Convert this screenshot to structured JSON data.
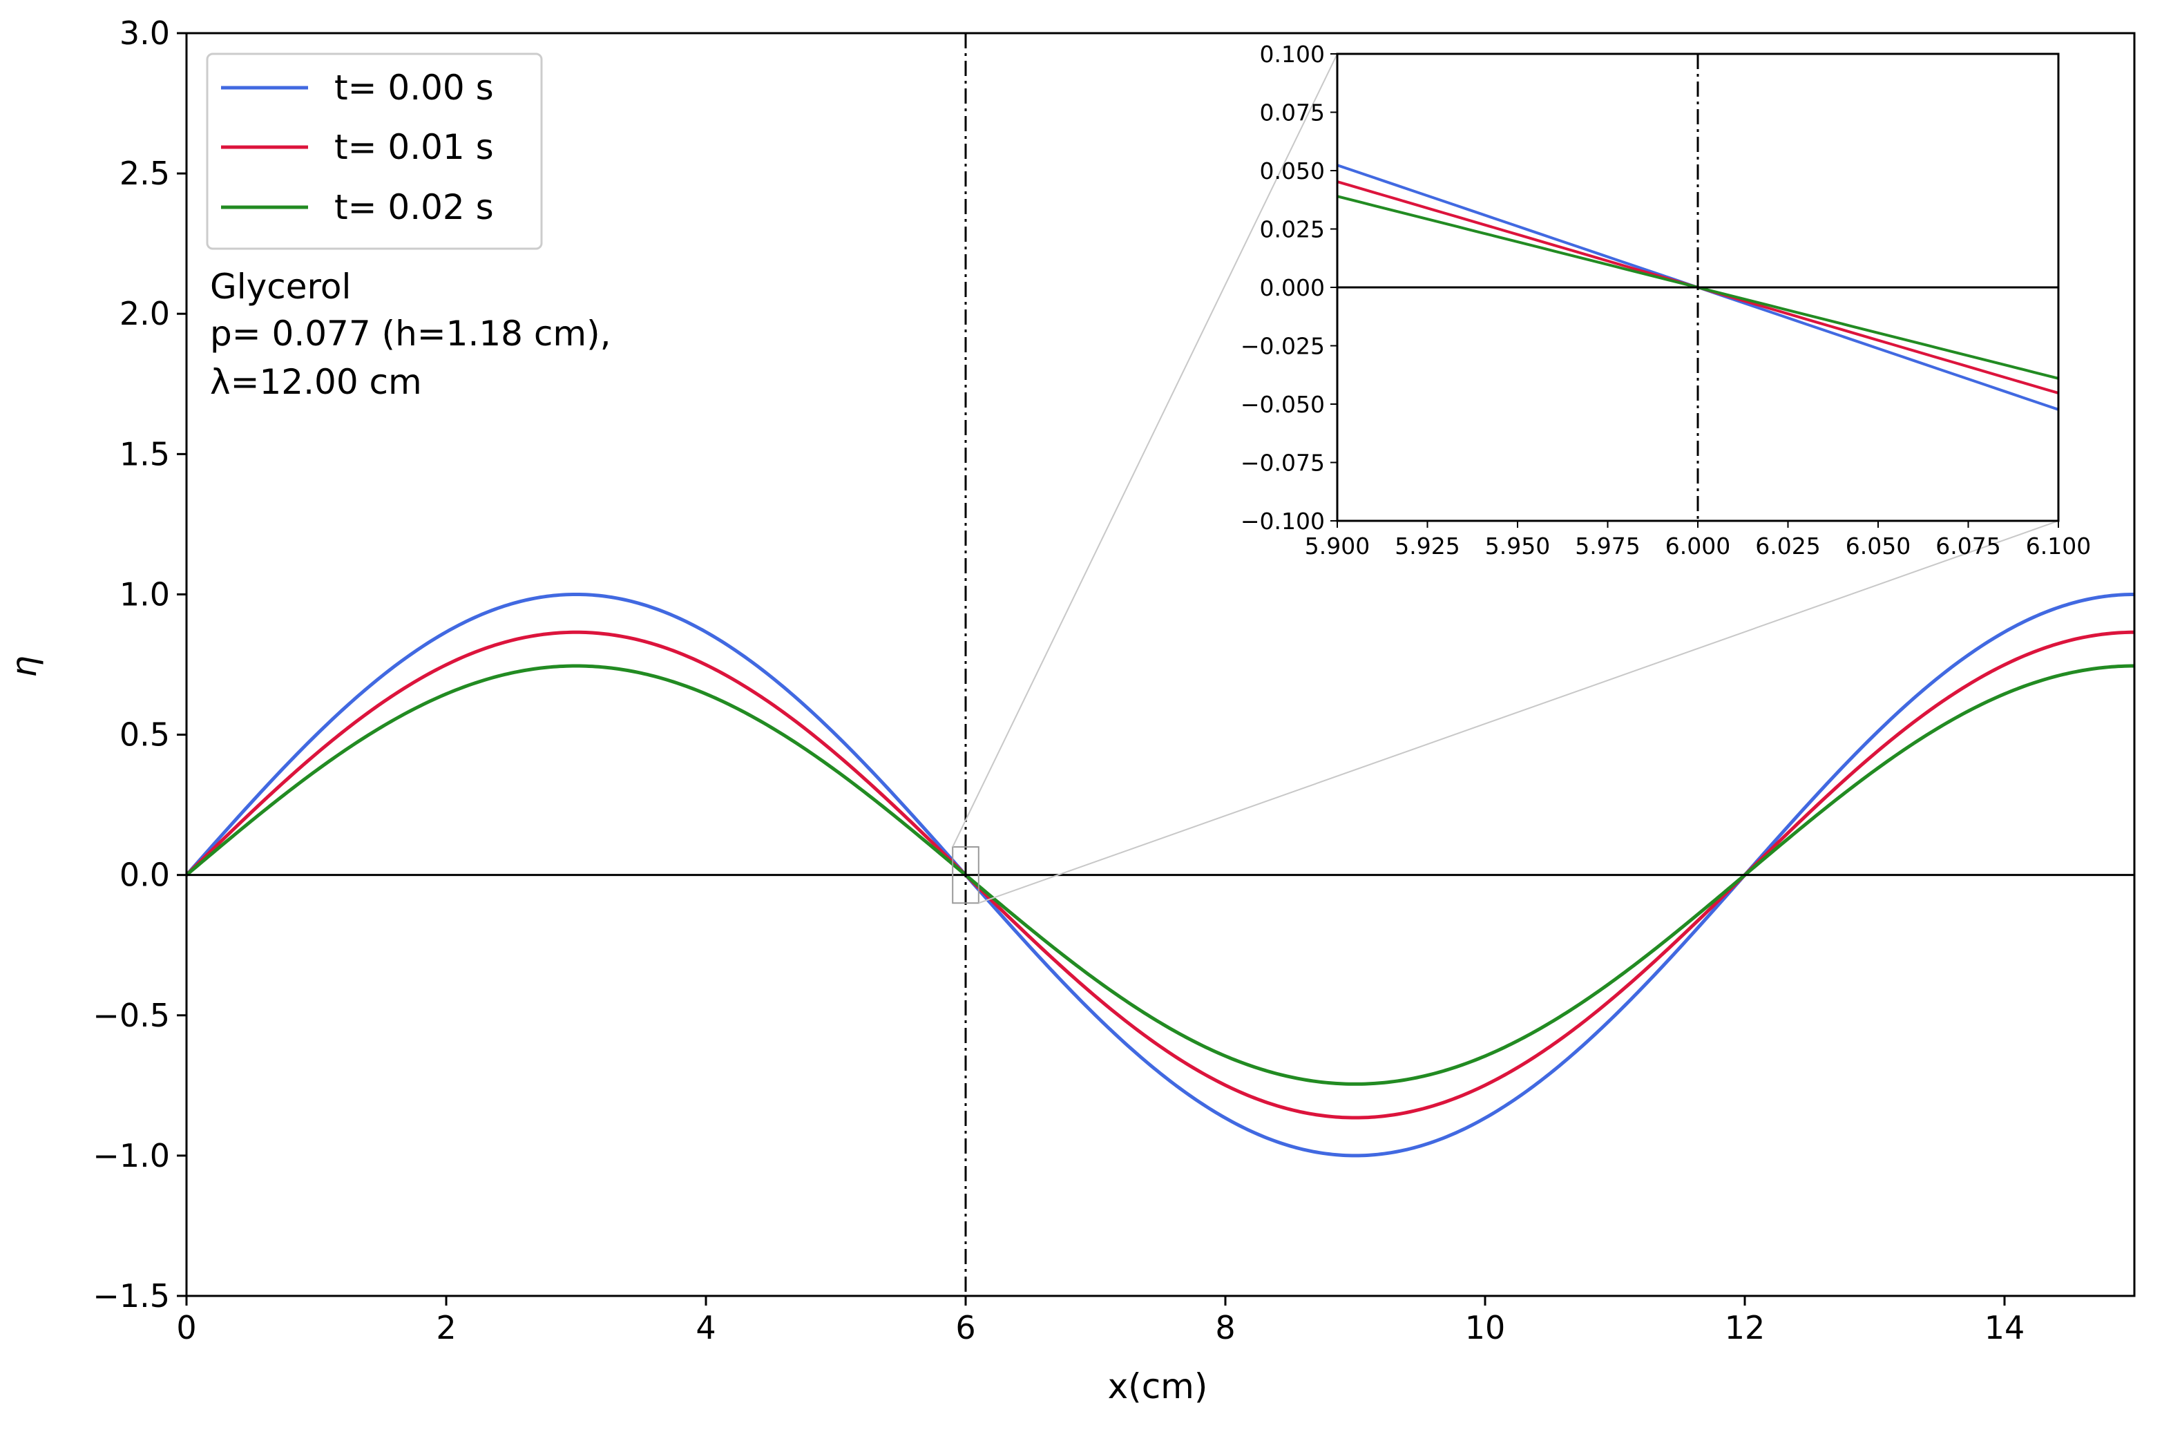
{
  "chart_data": [
    {
      "type": "line",
      "xlabel": "x(cm)",
      "ylabel": "η",
      "xlim": [
        0,
        15
      ],
      "ylim": [
        -1.5,
        3.0
      ],
      "xticks": [
        0,
        2,
        4,
        6,
        8,
        10,
        12,
        14
      ],
      "xtick_labels": [
        "0",
        "2",
        "4",
        "6",
        "8",
        "10",
        "12",
        "14"
      ],
      "yticks": [
        -1.5,
        -1.0,
        -0.5,
        0.0,
        0.5,
        1.0,
        1.5,
        2.0,
        2.5,
        3.0
      ],
      "ytick_labels": [
        "−1.5",
        "−1.0",
        "−0.5",
        "0.0",
        "0.5",
        "1.0",
        "1.5",
        "2.0",
        "2.5",
        "3.0"
      ],
      "wavelength": 12.0,
      "series": [
        {
          "name": "t= 0.00 s",
          "amplitude": 1.0,
          "color": "#4169e1"
        },
        {
          "name": "t= 0.01 s",
          "amplitude": 0.865,
          "color": "#dc143c"
        },
        {
          "name": "t= 0.02 s",
          "amplitude": 0.745,
          "color": "#228b22"
        }
      ],
      "reference_lines": {
        "horizontal_y": 0.0,
        "vertical_x": 6.0
      },
      "annotation": {
        "line1": "Glycerol",
        "line2": "p= 0.077 (h=1.18 cm),",
        "line3": "λ=12.00 cm"
      },
      "legend_position": "top-left"
    },
    {
      "type": "line",
      "role": "inset-zoom",
      "xlim": [
        5.9,
        6.1
      ],
      "ylim": [
        -0.1,
        0.1
      ],
      "xticks": [
        5.9,
        5.925,
        5.95,
        5.975,
        6.0,
        6.025,
        6.05,
        6.075,
        6.1
      ],
      "xtick_labels": [
        "5.900",
        "5.925",
        "5.950",
        "5.975",
        "6.000",
        "6.025",
        "6.050",
        "6.075",
        "6.100"
      ],
      "yticks": [
        -0.1,
        -0.075,
        -0.05,
        -0.025,
        0.0,
        0.025,
        0.05,
        0.075,
        0.1
      ],
      "ytick_labels": [
        "−0.100",
        "−0.075",
        "−0.050",
        "−0.025",
        "0.000",
        "0.025",
        "0.050",
        "0.075",
        "0.100"
      ],
      "zoom_region": {
        "x": [
          5.9,
          6.1
        ],
        "y": [
          -0.1,
          0.1
        ]
      }
    }
  ]
}
